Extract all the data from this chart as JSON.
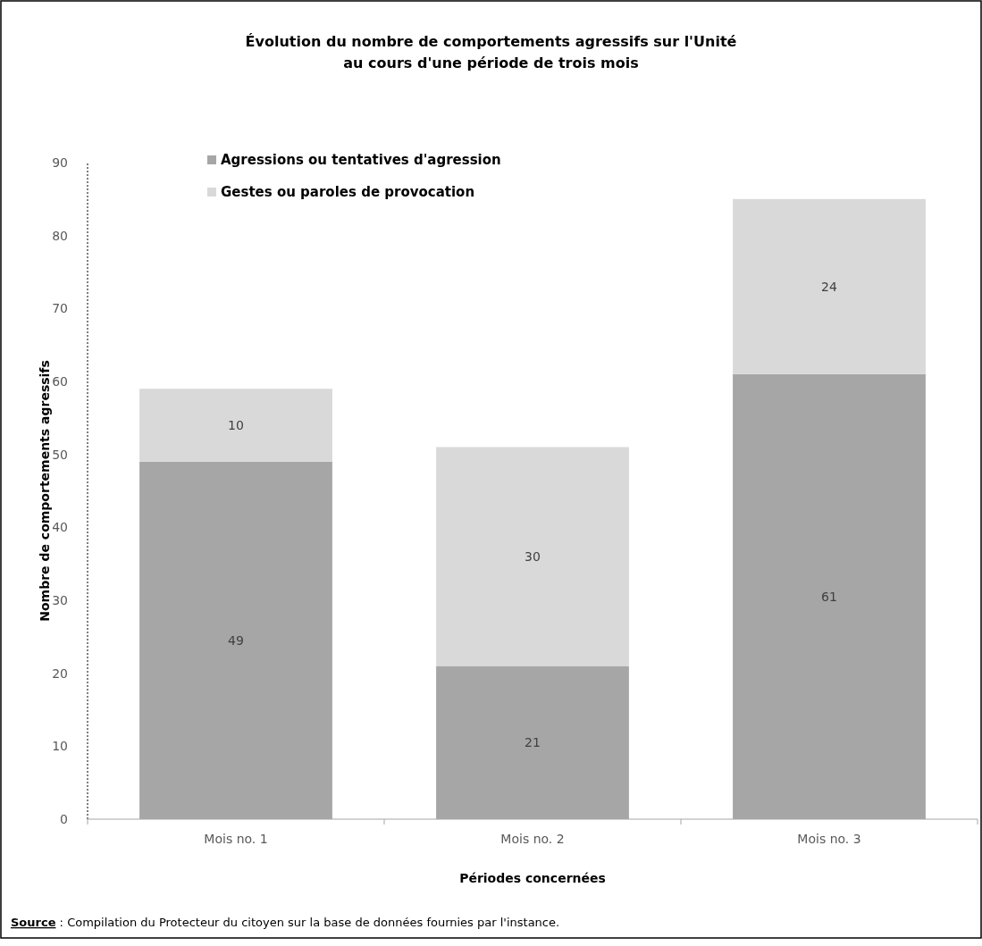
{
  "chart_data": {
    "type": "bar",
    "title": "Évolution du nombre de comportements agressifs sur l'Unité\nau cours d'une période de trois mois",
    "xlabel": "Périodes concernées",
    "ylabel": "Nombre de comportements agressifs",
    "categories": [
      "Mois no. 1",
      "Mois no. 2",
      "Mois no. 3"
    ],
    "stacked": true,
    "series": [
      {
        "name": "Agressions ou tentatives d'agression",
        "color": "#a6a6a6",
        "values": [
          49,
          21,
          61
        ]
      },
      {
        "name": "Gestes ou paroles de provocation",
        "color": "#d9d9d9",
        "values": [
          10,
          30,
          24
        ]
      }
    ],
    "ylim": [
      0,
      90
    ],
    "yticks": [
      0,
      10,
      20,
      30,
      40,
      50,
      60,
      70,
      80,
      90
    ],
    "grid": false,
    "legend": "top left",
    "data_labels": true,
    "annotations": [
      "Source : Compilation du Protecteur du citoyen sur la base de données fournies par l'instance."
    ]
  }
}
